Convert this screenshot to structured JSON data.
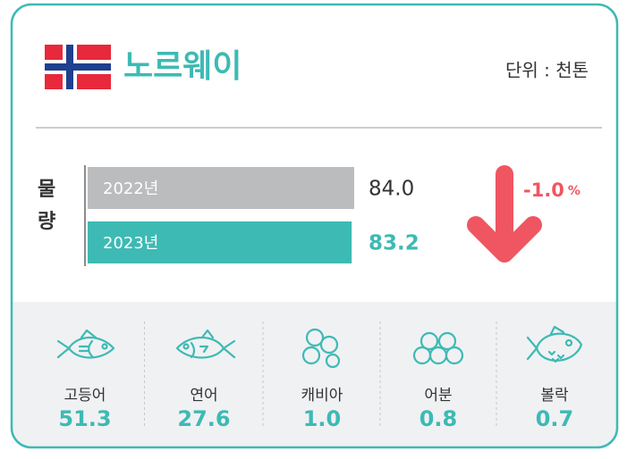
{
  "header": {
    "title": "노르웨이",
    "unit": "단위 : 천톤"
  },
  "chart_data": {
    "type": "bar",
    "orientation": "horizontal",
    "axis_label": "물량",
    "categories": [
      "2022년",
      "2023년"
    ],
    "values": [
      84.0,
      83.2
    ],
    "value_labels": [
      "84.0",
      "83.2"
    ],
    "colors": [
      "#bbbcbe",
      "#3dbab4"
    ],
    "change": {
      "value": -1.0,
      "label": "-1.0",
      "unit": "%",
      "color": "#ef5661"
    }
  },
  "species": [
    {
      "name": "고등어",
      "value": "51.3"
    },
    {
      "name": "연어",
      "value": "27.6"
    },
    {
      "name": "캐비아",
      "value": "1.0"
    },
    {
      "name": "어분",
      "value": "0.8"
    },
    {
      "name": "볼락",
      "value": "0.7"
    }
  ]
}
